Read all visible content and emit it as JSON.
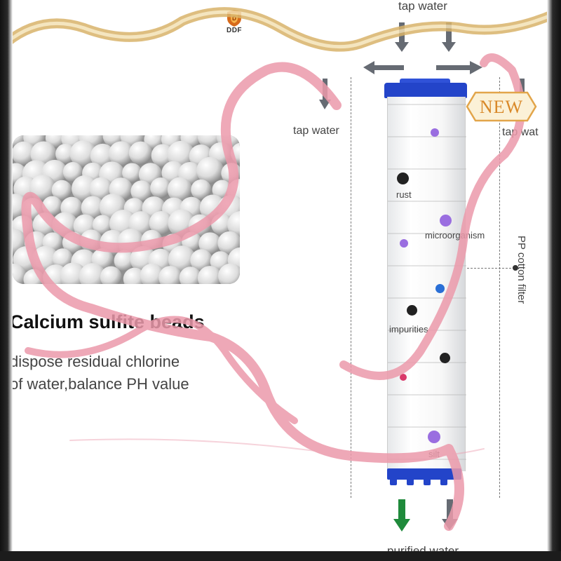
{
  "brand": {
    "name": "DDF"
  },
  "labels": {
    "tap_water_top": "tap water",
    "tap_water_left": "tap water",
    "tap_water_right": "tap wat",
    "purified_water": "purified water",
    "pp_filter": "PP cotton filter",
    "rust": "rust",
    "microorganism": "microorganism",
    "impurities": "impurities",
    "silt": "silt"
  },
  "badge": {
    "text": "NEW"
  },
  "beads": {
    "title": "Calcium sulfite beads",
    "desc_line1": "dispose residual chlorine",
    "desc_line2": "of water,balance PH value"
  },
  "colors": {
    "ribbon": "#ec9aab",
    "ribbon_gold": "#d9b36a",
    "filter_cap": "#2344c9",
    "arrow_gray": "#666b73",
    "arrow_green": "#1f8a3b",
    "dot_black": "#222222",
    "dot_purple": "#9a6ee0",
    "dot_blue": "#2a6fd6",
    "dot_red": "#d9386a"
  },
  "icons": [
    "brand-shield-icon",
    "down-arrow-icon",
    "left-arrow-icon",
    "right-arrow-icon"
  ]
}
